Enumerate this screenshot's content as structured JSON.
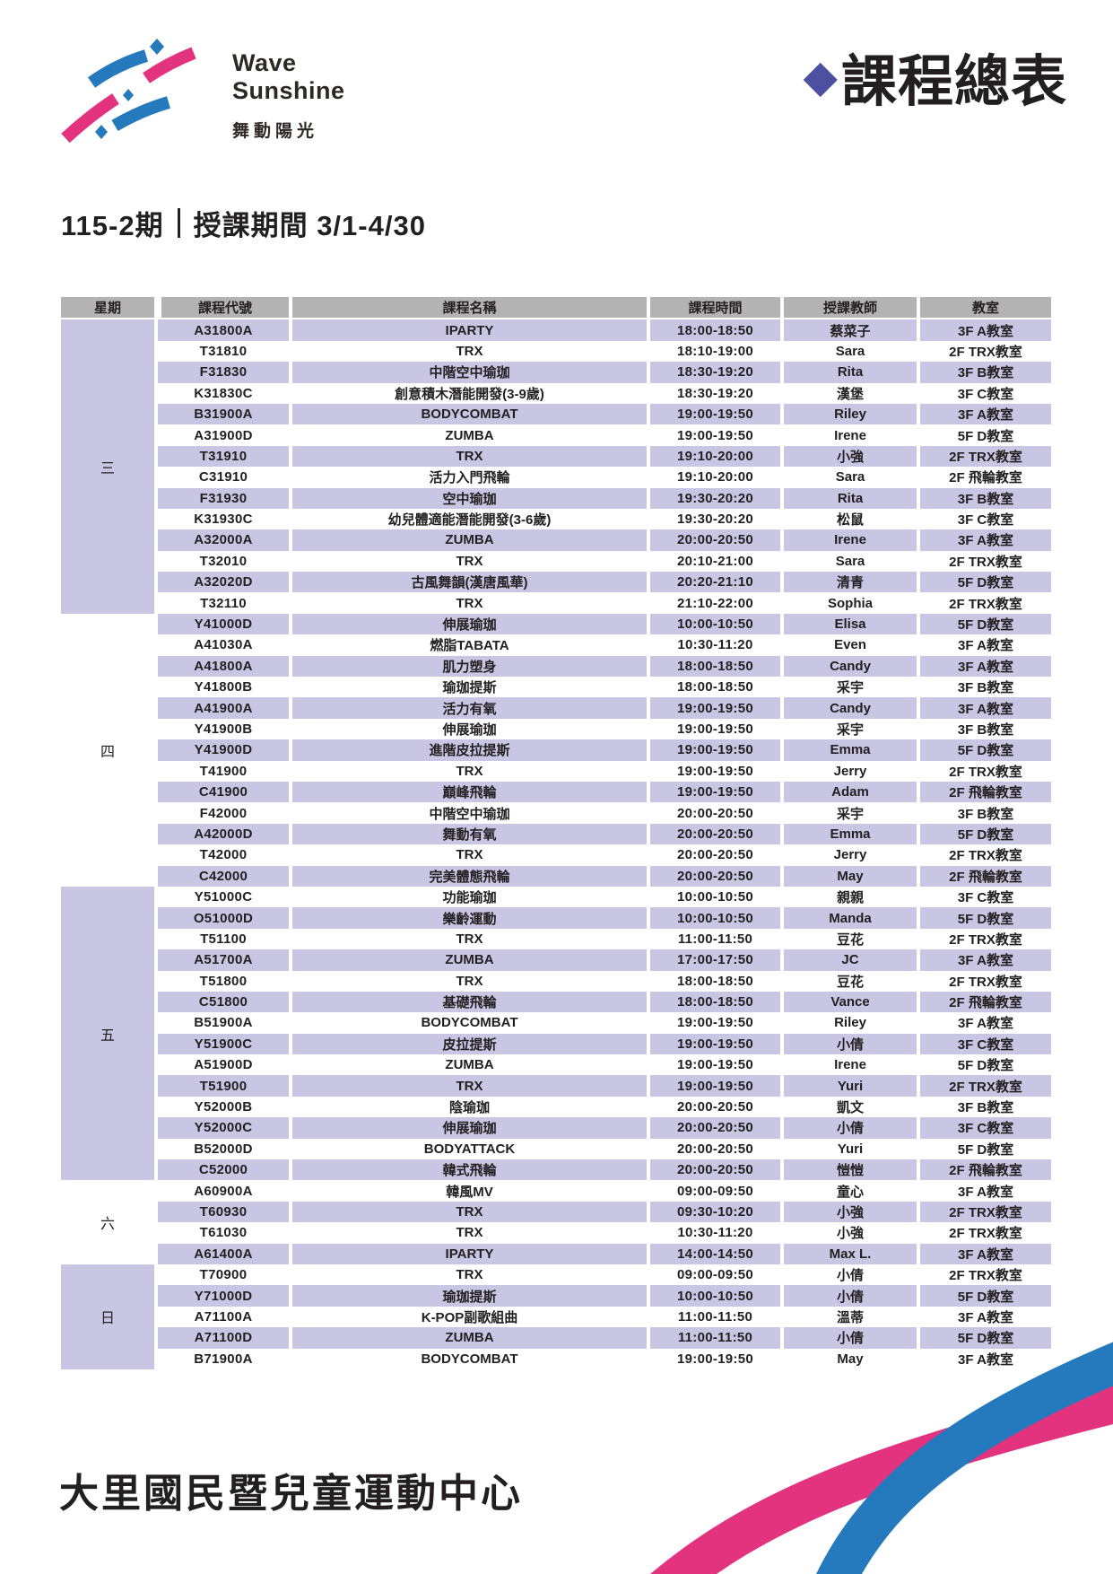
{
  "logo": {
    "line1": "Wave",
    "line2": "Sunshine",
    "subtitle": "舞動陽光"
  },
  "page_title": {
    "diamond": "◆",
    "text": "課程總表"
  },
  "heading": {
    "term": "115-2期",
    "period": "授課期間 3/1-4/30"
  },
  "footer": {
    "center_name": "大里國民暨兒童運動中心"
  },
  "colors": {
    "brand_blue": "#2579bd",
    "brand_pink": "#e3327e",
    "title_diamond": "#4b50a0",
    "header_gray": "#b3b3b3",
    "row_lavender": "#c8c6e2",
    "text_dark": "#231f20"
  },
  "table": {
    "columns": [
      "星期",
      "課程代號",
      "課程名稱",
      "課程時間",
      "授課教師",
      "教室"
    ],
    "row_fields": [
      "code",
      "name",
      "time",
      "teacher",
      "room"
    ],
    "groups": [
      {
        "day": "三",
        "rows": [
          [
            "A31800A",
            "IPARTY",
            "18:00-18:50",
            "蔡菜子",
            "3F A教室"
          ],
          [
            "T31810",
            "TRX",
            "18:10-19:00",
            "Sara",
            "2F TRX教室"
          ],
          [
            "F31830",
            "中階空中瑜珈",
            "18:30-19:20",
            "Rita",
            "3F B教室"
          ],
          [
            "K31830C",
            "創意積木潛能開發(3-9歲)",
            "18:30-19:20",
            "漢堡",
            "3F C教室"
          ],
          [
            "B31900A",
            "BODYCOMBAT",
            "19:00-19:50",
            "Riley",
            "3F A教室"
          ],
          [
            "A31900D",
            "ZUMBA",
            "19:00-19:50",
            "Irene",
            "5F D教室"
          ],
          [
            "T31910",
            "TRX",
            "19:10-20:00",
            "小強",
            "2F TRX教室"
          ],
          [
            "C31910",
            "活力入門飛輪",
            "19:10-20:00",
            "Sara",
            "2F 飛輪教室"
          ],
          [
            "F31930",
            "空中瑜珈",
            "19:30-20:20",
            "Rita",
            "3F B教室"
          ],
          [
            "K31930C",
            "幼兒體適能潛能開發(3-6歲)",
            "19:30-20:20",
            "松鼠",
            "3F C教室"
          ],
          [
            "A32000A",
            "ZUMBA",
            "20:00-20:50",
            "Irene",
            "3F A教室"
          ],
          [
            "T32010",
            "TRX",
            "20:10-21:00",
            "Sara",
            "2F TRX教室"
          ],
          [
            "A32020D",
            "古風舞韻(漢唐風華)",
            "20:20-21:10",
            "清青",
            "5F D教室"
          ],
          [
            "T32110",
            "TRX",
            "21:10-22:00",
            "Sophia",
            "2F TRX教室"
          ]
        ]
      },
      {
        "day": "四",
        "rows": [
          [
            "Y41000D",
            "伸展瑜珈",
            "10:00-10:50",
            "Elisa",
            "5F D教室"
          ],
          [
            "A41030A",
            "燃脂TABATA",
            "10:30-11:20",
            "Even",
            "3F A教室"
          ],
          [
            "A41800A",
            "肌力塑身",
            "18:00-18:50",
            "Candy",
            "3F A教室"
          ],
          [
            "Y41800B",
            "瑜珈提斯",
            "18:00-18:50",
            "采宇",
            "3F B教室"
          ],
          [
            "A41900A",
            "活力有氧",
            "19:00-19:50",
            "Candy",
            "3F A教室"
          ],
          [
            "Y41900B",
            "伸展瑜珈",
            "19:00-19:50",
            "采宇",
            "3F B教室"
          ],
          [
            "Y41900D",
            "進階皮拉提斯",
            "19:00-19:50",
            "Emma",
            "5F D教室"
          ],
          [
            "T41900",
            "TRX",
            "19:00-19:50",
            "Jerry",
            "2F TRX教室"
          ],
          [
            "C41900",
            "巔峰飛輪",
            "19:00-19:50",
            "Adam",
            "2F 飛輪教室"
          ],
          [
            "F42000",
            "中階空中瑜珈",
            "20:00-20:50",
            "采宇",
            "3F B教室"
          ],
          [
            "A42000D",
            "舞動有氧",
            "20:00-20:50",
            "Emma",
            "5F D教室"
          ],
          [
            "T42000",
            "TRX",
            "20:00-20:50",
            "Jerry",
            "2F TRX教室"
          ],
          [
            "C42000",
            "完美體態飛輪",
            "20:00-20:50",
            "May",
            "2F 飛輪教室"
          ]
        ]
      },
      {
        "day": "五",
        "rows": [
          [
            "Y51000C",
            "功能瑜珈",
            "10:00-10:50",
            "親親",
            "3F C教室"
          ],
          [
            "O51000D",
            "樂齡運動",
            "10:00-10:50",
            "Manda",
            "5F D教室"
          ],
          [
            "T51100",
            "TRX",
            "11:00-11:50",
            "豆花",
            "2F TRX教室"
          ],
          [
            "A51700A",
            "ZUMBA",
            "17:00-17:50",
            "JC",
            "3F A教室"
          ],
          [
            "T51800",
            "TRX",
            "18:00-18:50",
            "豆花",
            "2F TRX教室"
          ],
          [
            "C51800",
            "基礎飛輪",
            "18:00-18:50",
            "Vance",
            "2F 飛輪教室"
          ],
          [
            "B51900A",
            "BODYCOMBAT",
            "19:00-19:50",
            "Riley",
            "3F A教室"
          ],
          [
            "Y51900C",
            "皮拉提斯",
            "19:00-19:50",
            "小倩",
            "3F C教室"
          ],
          [
            "A51900D",
            "ZUMBA",
            "19:00-19:50",
            "Irene",
            "5F D教室"
          ],
          [
            "T51900",
            "TRX",
            "19:00-19:50",
            "Yuri",
            "2F TRX教室"
          ],
          [
            "Y52000B",
            "陰瑜珈",
            "20:00-20:50",
            "凱文",
            "3F B教室"
          ],
          [
            "Y52000C",
            "伸展瑜珈",
            "20:00-20:50",
            "小倩",
            "3F C教室"
          ],
          [
            "B52000D",
            "BODYATTACK",
            "20:00-20:50",
            "Yuri",
            "5F D教室"
          ],
          [
            "C52000",
            "韓式飛輪",
            "20:00-20:50",
            "愷愷",
            "2F 飛輪教室"
          ]
        ]
      },
      {
        "day": "六",
        "rows": [
          [
            "A60900A",
            "韓風MV",
            "09:00-09:50",
            "童心",
            "3F A教室"
          ],
          [
            "T60930",
            "TRX",
            "09:30-10:20",
            "小強",
            "2F TRX教室"
          ],
          [
            "T61030",
            "TRX",
            "10:30-11:20",
            "小強",
            "2F TRX教室"
          ],
          [
            "A61400A",
            "IPARTY",
            "14:00-14:50",
            "Max L.",
            "3F A教室"
          ]
        ]
      },
      {
        "day": "日",
        "rows": [
          [
            "T70900",
            "TRX",
            "09:00-09:50",
            "小倩",
            "2F TRX教室"
          ],
          [
            "Y71000D",
            "瑜珈提斯",
            "10:00-10:50",
            "小倩",
            "5F D教室"
          ],
          [
            "A71100A",
            "K-POP副歌組曲",
            "11:00-11:50",
            "溫蒂",
            "3F A教室"
          ],
          [
            "A71100D",
            "ZUMBA",
            "11:00-11:50",
            "小倩",
            "5F D教室"
          ],
          [
            "B71900A",
            "BODYCOMBAT",
            "19:00-19:50",
            "May",
            "3F A教室"
          ]
        ]
      }
    ]
  }
}
